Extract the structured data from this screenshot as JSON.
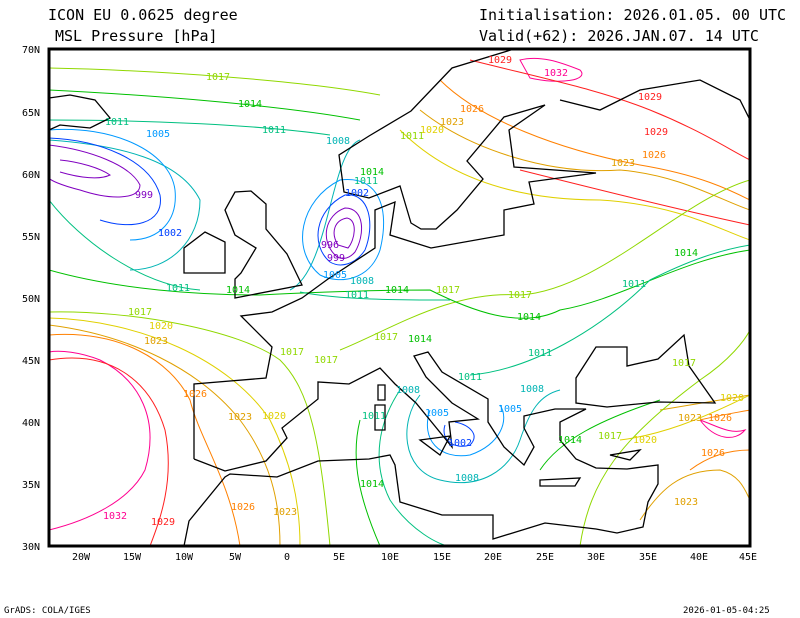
{
  "header": {
    "model": "ICON EU 0.0625 degree",
    "variable": "MSL Pressure [hPa]",
    "init": "Initialisation: 2026.01.05. 00 UTC",
    "valid": "Valid(+62): 2026.JAN.07. 14 UTC"
  },
  "footer": {
    "credit": "GrADS: COLA/IGES",
    "timestamp": "2026-01-05-04:25"
  },
  "axes": {
    "lat_ticks": [
      "70N",
      "65N",
      "60N",
      "55N",
      "50N",
      "45N",
      "40N",
      "35N",
      "30N"
    ],
    "lon_ticks": [
      "20W",
      "15W",
      "10W",
      "5W",
      "0",
      "5E",
      "10E",
      "15E",
      "20E",
      "25E",
      "30E",
      "35E",
      "40E",
      "45E"
    ]
  },
  "colors": {
    "996": "#8000c0",
    "999": "#8000c0",
    "1002": "#0040ff",
    "1005": "#0099ff",
    "1008": "#00b4b4",
    "1011": "#00c080",
    "1014": "#00c000",
    "1017": "#90d800",
    "1020": "#e0d000",
    "1023": "#e0a000",
    "1026": "#ff8000",
    "1029": "#ff2020",
    "1032": "#ff0090"
  },
  "isobar_labels": [
    "1029",
    "1032",
    "1029",
    "1029",
    "1026",
    "1023",
    "1020",
    "1026",
    "1023",
    "1017",
    "1014",
    "1011",
    "1005",
    "1011",
    "1008",
    "1011",
    "999",
    "1002",
    "1002",
    "1011",
    "1014",
    "996",
    "999",
    "1005",
    "1008",
    "1011",
    "1014",
    "1017",
    "1017",
    "1014",
    "1011",
    "1014",
    "1011",
    "1011",
    "1014",
    "1017",
    "1020",
    "1023",
    "1017",
    "1017",
    "1017",
    "1014",
    "1011",
    "1008",
    "1008",
    "1005",
    "1005",
    "1002",
    "1008",
    "1011",
    "1014",
    "1014",
    "1017",
    "1020",
    "1023",
    "1026",
    "1026",
    "1020",
    "1026",
    "1023",
    "1020",
    "1032",
    "1029",
    "1026",
    "1023",
    "1023",
    "1017"
  ]
}
